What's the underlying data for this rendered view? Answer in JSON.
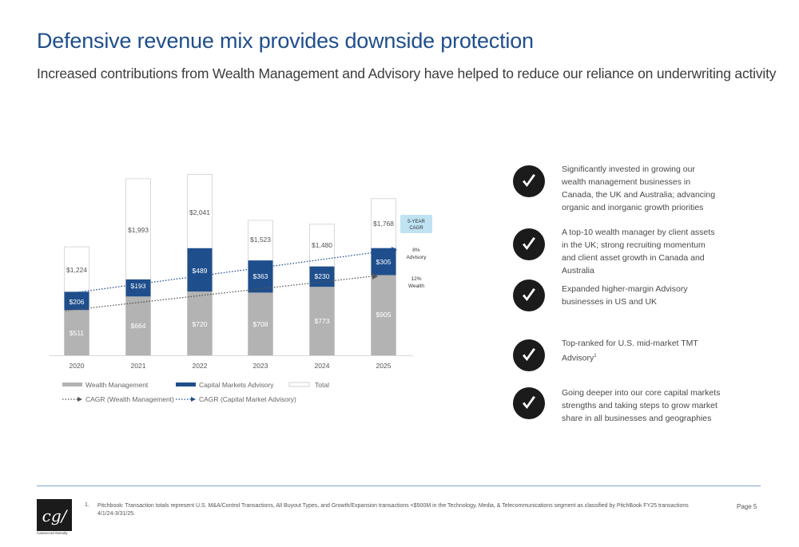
{
  "header": {
    "title": "Defensive revenue mix provides downside protection",
    "subtitle": "Increased contributions from Wealth Management and Advisory have helped to reduce our reliance on underwriting activity"
  },
  "chart_data": {
    "type": "bar",
    "stacked": true,
    "categories": [
      "2020",
      "2021",
      "2022",
      "2023",
      "2024",
      "2025"
    ],
    "series": [
      {
        "name": "Wealth Management",
        "color": "#b3b3b3",
        "values": [
          511,
          664,
          720,
          708,
          773,
          905
        ],
        "labels": [
          "$511",
          "$664",
          "$720",
          "$708",
          "$773",
          "$905"
        ]
      },
      {
        "name": "Capital Markets Advisory",
        "color": "#1f4e8c",
        "values": [
          206,
          193,
          489,
          363,
          230,
          305
        ],
        "labels": [
          "$206",
          "$193",
          "$489",
          "$363",
          "$230",
          "$305"
        ]
      },
      {
        "name": "Total",
        "color": "#ffffff",
        "values": [
          1224,
          1993,
          2041,
          1523,
          1480,
          1768
        ],
        "labels": [
          "$1,224",
          "$1,993",
          "$2,041",
          "$1,523",
          "$1,480",
          "$1,768"
        ]
      }
    ],
    "cagr_lines": [
      {
        "name": "CAGR (Wealth Management)",
        "color": "#555555"
      },
      {
        "name": "CAGR (Capital Market Advisory)",
        "color": "#1f4e8c"
      }
    ],
    "cagr_box": {
      "label_line1": "5-YEAR",
      "label_line2": "CAGR",
      "color": "#bfe3f3"
    },
    "cagr_annotations": [
      {
        "value": "8%",
        "label": "Advisory"
      },
      {
        "value": "12%",
        "label": "Wealth"
      }
    ],
    "ylim": [
      0,
      2200
    ]
  },
  "bullets": [
    {
      "text": "Significantly invested in growing our wealth management businesses in Canada, the UK and Australia; advancing organic and inorganic growth priorities"
    },
    {
      "text": "A top-10 wealth manager by client assets in the UK; strong recruiting momentum and client asset growth in Canada and Australia"
    },
    {
      "text": "Expanded higher-margin Advisory businesses in US and UK"
    },
    {
      "text": "Top-ranked for U.S. mid-market TMT Advisory",
      "sup": "1"
    },
    {
      "text": "Going deeper into our core capital markets strengths and taking steps to grow market share in all businesses and geographies"
    }
  ],
  "footer": {
    "logo": "cg/",
    "company": "Canaccord Genuity",
    "footnote_number": "1.",
    "footnote": "Pitchbook: Transaction totals represent U.S. M&A/Control Transactions, All Buyout Types, and Growth/Expansion transactions <$500M in the Technology, Media, & Telecommunications segment as classified by PitchBook FY25 transactions 4/1/24-3/31/25.",
    "page": "Page 5"
  }
}
